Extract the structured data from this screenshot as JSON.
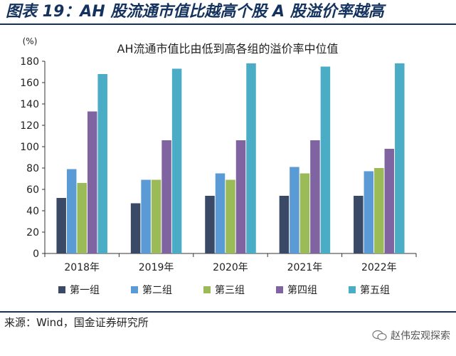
{
  "figure": {
    "title": "图表 19：AH 股流通市值比越高个股 A 股溢价率越高",
    "source": "来源：Wind，国金证券研究所",
    "watermark": "赵伟宏观探索"
  },
  "chart_data": {
    "type": "bar",
    "title": "AH流通市值比由低到高各组的溢价率中位值",
    "ylabel": "(%)",
    "xlabel": "",
    "ylim": [
      0,
      180
    ],
    "ytick_step": 20,
    "grid": false,
    "legend_position": "bottom",
    "categories": [
      "2018年",
      "2019年",
      "2020年",
      "2021年",
      "2022年"
    ],
    "series": [
      {
        "name": "第一组",
        "color": "#3a4a66",
        "values": [
          52,
          47,
          54,
          54,
          54
        ]
      },
      {
        "name": "第二组",
        "color": "#5b9bd5",
        "values": [
          79,
          69,
          75,
          81,
          77
        ]
      },
      {
        "name": "第三组",
        "color": "#9bbb59",
        "values": [
          66,
          69,
          69,
          75,
          80
        ]
      },
      {
        "name": "第四组",
        "color": "#8064a2",
        "values": [
          133,
          106,
          106,
          106,
          98
        ]
      },
      {
        "name": "第五组",
        "color": "#4bacc6",
        "values": [
          168,
          173,
          178,
          175,
          178
        ]
      }
    ]
  }
}
